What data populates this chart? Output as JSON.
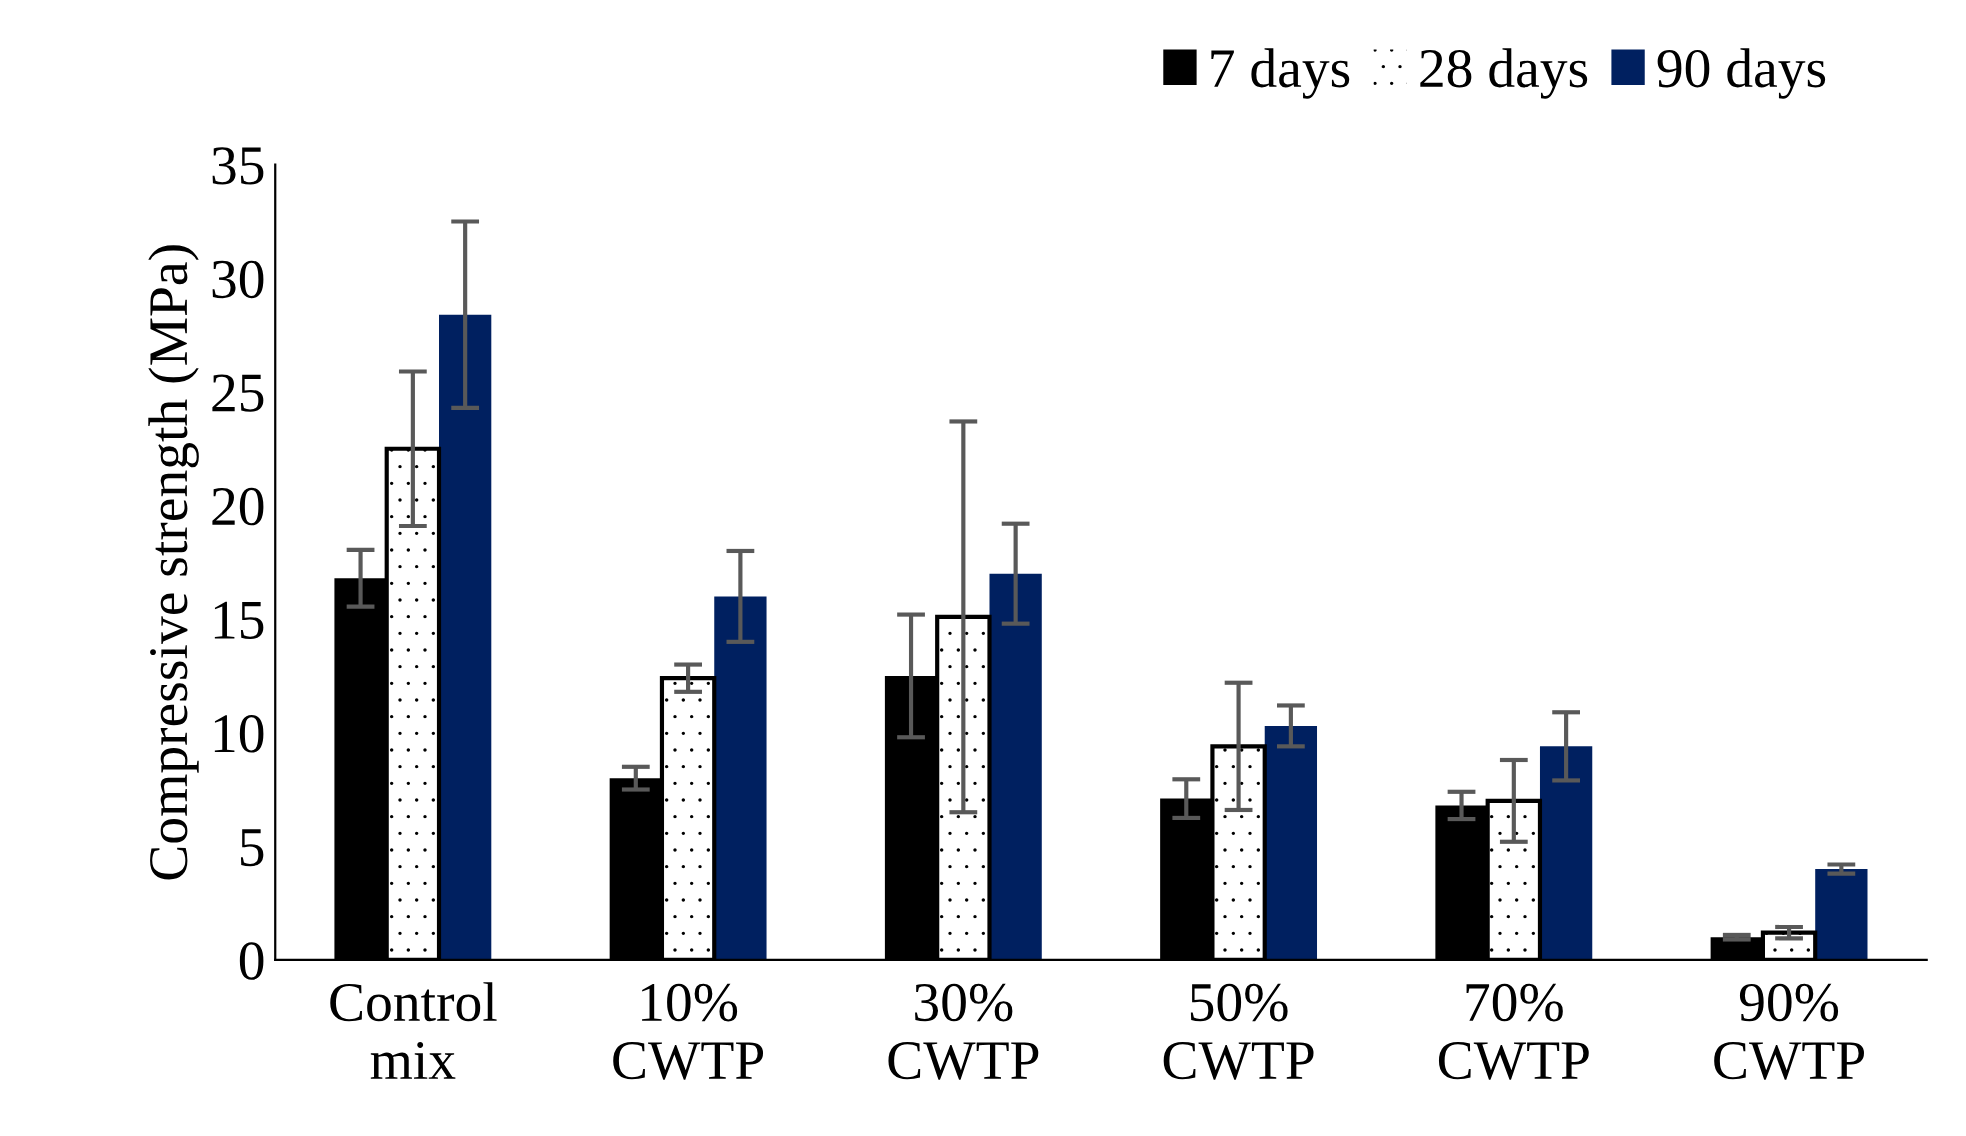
{
  "chart_data": {
    "type": "bar",
    "ylabel": "Compressive strength (MPa)",
    "categories": [
      "Control\nmix",
      "10%\nCWTP",
      "30%\nCWTP",
      "50%\nCWTP",
      "70%\nCWTP",
      "90%\nCWTP"
    ],
    "series": [
      {
        "name": "7 days",
        "color": "#000000",
        "values": [
          16.8,
          8.0,
          12.5,
          7.1,
          6.8,
          1.0
        ],
        "errors": [
          1.25,
          0.5,
          2.7,
          0.85,
          0.6,
          0.1
        ]
      },
      {
        "name": "28 days",
        "color": "#ffffff",
        "values": [
          22.5,
          12.4,
          15.1,
          9.4,
          7.0,
          1.2
        ],
        "errors": [
          3.4,
          0.6,
          8.6,
          2.8,
          1.8,
          0.25
        ]
      },
      {
        "name": "90 days",
        "color": "#002060",
        "values": [
          28.4,
          16.0,
          17.0,
          10.3,
          9.4,
          4.0
        ],
        "errors": [
          4.1,
          2.0,
          2.2,
          0.9,
          1.5,
          0.2
        ]
      }
    ],
    "ylim": [
      0,
      35
    ],
    "yticks": [
      0,
      5,
      10,
      15,
      20,
      25,
      30,
      35
    ],
    "grid": false,
    "legend": "top right"
  }
}
